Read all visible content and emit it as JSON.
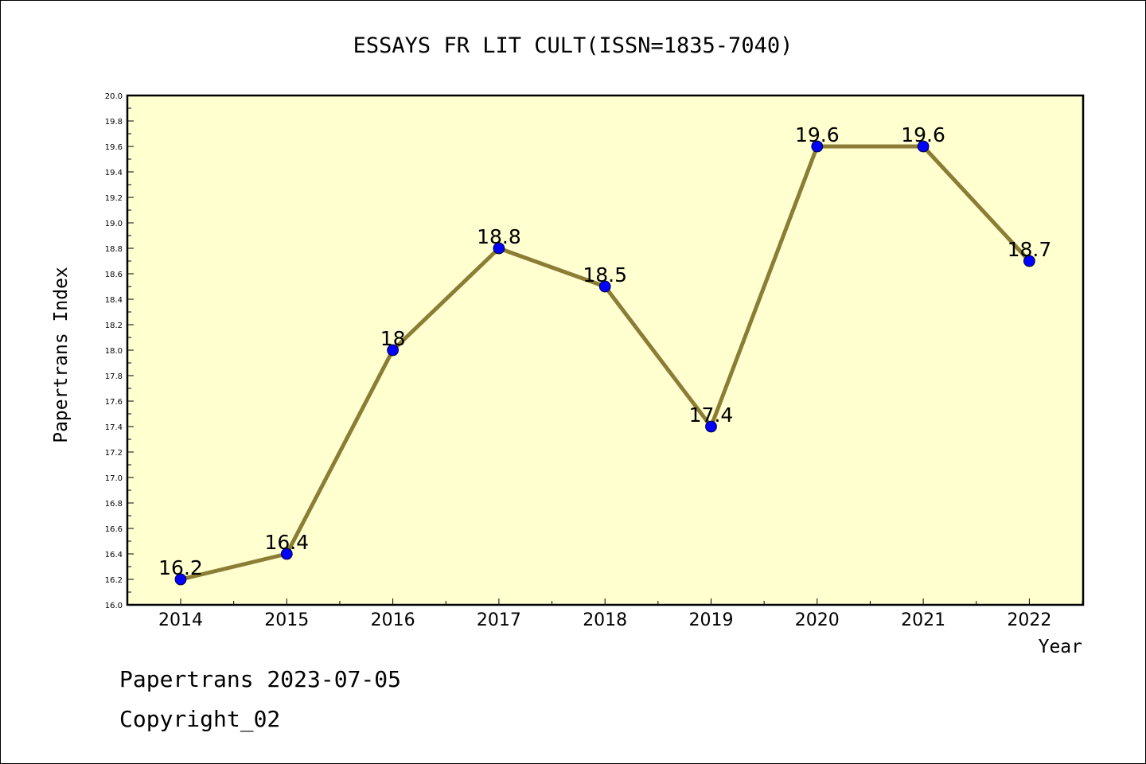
{
  "footer": {
    "line1": "Papertrans 2023-07-05",
    "line2": "Copyright_02"
  },
  "colors": {
    "plot_background": "#ffffd0",
    "line": "#8b7d35",
    "marker": "#0000ff",
    "frame": "#000000"
  },
  "chart_data": {
    "type": "line",
    "title": "ESSAYS FR LIT CULT(ISSN=1835-7040)",
    "xlabel": "Year",
    "ylabel": "Papertrans Index",
    "categories": [
      "2014",
      "2015",
      "2016",
      "2017",
      "2018",
      "2019",
      "2020",
      "2021",
      "2022"
    ],
    "values": [
      16.2,
      16.4,
      18.0,
      18.8,
      18.5,
      17.4,
      19.6,
      19.6,
      18.7
    ],
    "data_labels": [
      "16.2",
      "16.4",
      "18",
      "18.8",
      "18.5",
      "17.4",
      "19.6",
      "19.6",
      "18.7"
    ],
    "ylim": [
      16.0,
      20.0
    ],
    "yticks": [
      "16.0",
      "16.2",
      "16.4",
      "16.6",
      "16.8",
      "17.0",
      "17.2",
      "17.4",
      "17.6",
      "17.8",
      "18.0",
      "18.2",
      "18.4",
      "18.6",
      "18.8",
      "19.0",
      "19.2",
      "19.4",
      "19.6",
      "19.8",
      "20.0"
    ],
    "grid": false,
    "legend": "none"
  }
}
